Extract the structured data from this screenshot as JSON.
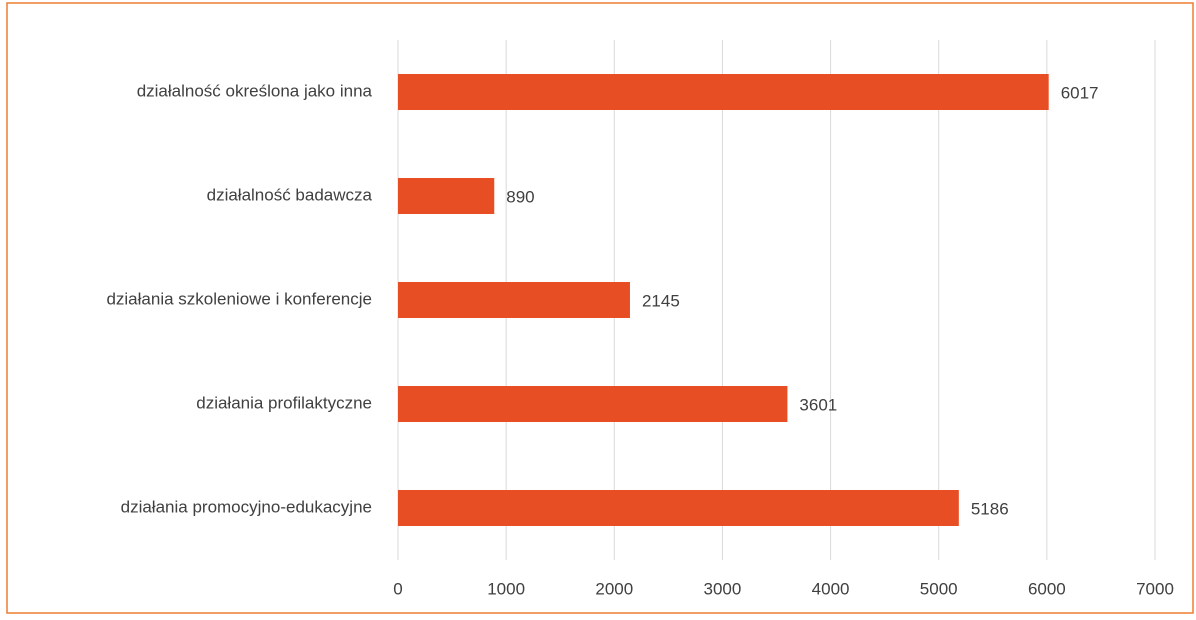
{
  "chart_data": {
    "type": "barh",
    "categories": [
      "działalność określona jako inna",
      "działalność badawcza",
      "działania szkoleniowe i konferencje",
      "działania profilaktyczne",
      "działania promocyjno-edukacyjne"
    ],
    "values": [
      6017,
      890,
      2145,
      3601,
      5186
    ],
    "color": "#e84e24",
    "xlim": [
      0,
      7000
    ],
    "xticks": [
      0,
      1000,
      2000,
      3000,
      4000,
      5000,
      6000,
      7000
    ],
    "grid": true
  }
}
